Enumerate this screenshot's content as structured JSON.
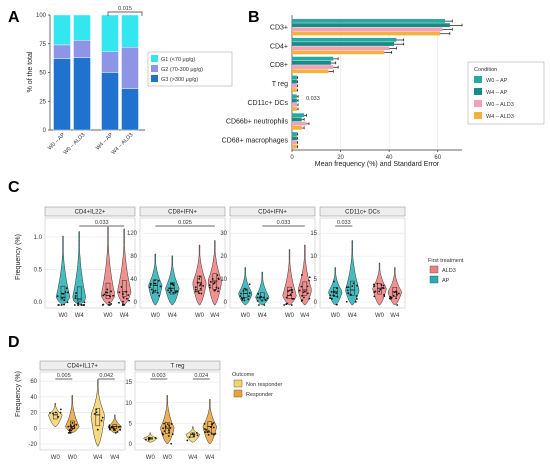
{
  "panels": {
    "A": {
      "letter": "A",
      "ylabel": "% of the total",
      "yticks": [
        "0",
        "25",
        "50",
        "75",
        "100"
      ],
      "annotation": "0.015",
      "legend": [
        "G1 (<70 μg/g)",
        "G2 (70-300 μg/g)",
        "G3 (>300 μg/g)"
      ]
    },
    "B": {
      "letter": "B",
      "xlabel": "Mean frequency (%) and Standard Error",
      "xticks": [
        "0",
        "20",
        "40",
        "60"
      ],
      "annotation": "0.033",
      "legend_title": "Condition",
      "legend": [
        "W0 – AP",
        "W4 – AP",
        "W0 – ALD3",
        "W4 – ALD3"
      ]
    },
    "C": {
      "letter": "C",
      "ylabel": "Frequency (%)",
      "legend_title": "First treatment",
      "legend": [
        "ALD3",
        "AP"
      ],
      "subplots": [
        {
          "title": "CD4+IL22+",
          "yticks": [
            "0.0",
            "0.5",
            "1.0"
          ],
          "annotation": "0.033"
        },
        {
          "title": "CD8+IFN+",
          "yticks": [
            "0",
            "40",
            "80",
            "120"
          ],
          "annotation": "0.025"
        },
        {
          "title": "CD4+IFN+",
          "yticks": [
            "0",
            "10",
            "20",
            "30"
          ],
          "annotation": "0.033"
        },
        {
          "title": "CD11c+ DCs",
          "yticks": [
            "0",
            "5",
            "10",
            "15"
          ],
          "annotation": "0.033"
        }
      ]
    },
    "D": {
      "letter": "D",
      "ylabel": "Frequency (%)",
      "legend_title": "Outcome",
      "legend": [
        "Non responder",
        "Responder"
      ],
      "subplots": [
        {
          "title": "CD4+IL17+",
          "yticks": [
            "-20",
            "0",
            "20",
            "40",
            "60"
          ],
          "annotations": [
            "0.005",
            "0.042"
          ]
        },
        {
          "title": "T reg",
          "yticks": [
            "0",
            "5",
            "10",
            "15"
          ],
          "annotations": [
            "0.003",
            "0.024"
          ]
        }
      ]
    }
  },
  "colors": {
    "G1": "#33e6f0",
    "G2": "#8f95e6",
    "G3": "#1f73cf",
    "W0_AP": "#26a9a0",
    "W4_AP": "#1a8a86",
    "W0_ALD3": "#f3a1b8",
    "W4_ALD3": "#f5b13d",
    "ALD3": "#ef7f7f",
    "AP": "#26b0b3",
    "NonResp": "#f6d26b",
    "Resp": "#e9a33a"
  },
  "chart_data": [
    {
      "type": "bar",
      "title": "",
      "ylabel": "% of the total",
      "categories": [
        "W0 – AP",
        "W0 – ALD3",
        "W4 – AP",
        "W4 – ALD3"
      ],
      "stacked": true,
      "ylim": [
        0,
        100
      ],
      "series": [
        {
          "name": "G3 (>300 μg/g)",
          "values": [
            62,
            63,
            50,
            36
          ]
        },
        {
          "name": "G2 (70-300 μg/g)",
          "values": [
            12,
            15,
            18,
            36
          ]
        },
        {
          "name": "G1 (<70 μg/g)",
          "values": [
            26,
            22,
            32,
            28
          ]
        }
      ]
    },
    {
      "type": "bar",
      "orientation": "horizontal",
      "xlabel": "Mean frequency (%) and Standard Error",
      "xlim": [
        0,
        70
      ],
      "categories": [
        "CD3+",
        "CD4+",
        "CD8+",
        "T reg",
        "CD11c+ DCs",
        "CD66b+ neutrophils",
        "CD68+ macrophages"
      ],
      "series": [
        {
          "name": "W0 – AP",
          "values": [
            63,
            43,
            17,
            2,
            2,
            5,
            2
          ]
        },
        {
          "name": "W4 – AP",
          "values": [
            65,
            42,
            16,
            2,
            2,
            4,
            2
          ]
        },
        {
          "name": "W0 – ALD3",
          "values": [
            62,
            40,
            17,
            2,
            2,
            6,
            2
          ]
        },
        {
          "name": "W4 – ALD3",
          "values": [
            61,
            38,
            15,
            2,
            2,
            4,
            2
          ]
        }
      ],
      "errors": [
        [
          3,
          3,
          2,
          0.3,
          0.5,
          1,
          0.3
        ],
        [
          5,
          4,
          2,
          0.3,
          0.5,
          1,
          0.3
        ],
        [
          4,
          3,
          2,
          0.3,
          0.5,
          1,
          0.3
        ],
        [
          4,
          3,
          2,
          0.3,
          0.5,
          1,
          0.3
        ]
      ]
    },
    {
      "type": "scatter",
      "subtype": "violin",
      "title": "CD4+IL22+",
      "categories": [
        "W0",
        "W4",
        "W0",
        "W4"
      ],
      "groups": [
        "AP",
        "AP",
        "ALD3",
        "ALD3"
      ],
      "ylim": [
        0,
        1.3
      ],
      "medians": [
        0.08,
        0.06,
        0.1,
        0.12
      ]
    },
    {
      "type": "scatter",
      "subtype": "violin",
      "title": "CD8+IFN+",
      "categories": [
        "W0",
        "W4",
        "W0",
        "W4"
      ],
      "groups": [
        "AP",
        "AP",
        "ALD3",
        "ALD3"
      ],
      "ylim": [
        0,
        130
      ],
      "medians": [
        35,
        33,
        40,
        45
      ]
    },
    {
      "type": "scatter",
      "subtype": "violin",
      "title": "CD4+IFN+",
      "categories": [
        "W0",
        "W4",
        "W0",
        "W4"
      ],
      "groups": [
        "AP",
        "AP",
        "ALD3",
        "ALD3"
      ],
      "ylim": [
        0,
        35
      ],
      "medians": [
        5,
        3,
        4,
        6
      ]
    },
    {
      "type": "scatter",
      "subtype": "violin",
      "title": "CD11c+ DCs",
      "categories": [
        "W4",
        "W0",
        "W4",
        "W0",
        "W4"
      ],
      "groups": [
        "AP",
        "AP",
        "AP",
        "ALD3",
        "ALD3"
      ],
      "ylim": [
        0,
        17
      ],
      "medians": [
        2,
        2.5,
        3,
        3,
        3
      ]
    },
    {
      "type": "scatter",
      "subtype": "violin",
      "title": "CD4+IL17+",
      "categories": [
        "W0",
        "W0",
        "W4",
        "W4"
      ],
      "groups": [
        "Non responder",
        "Responder",
        "Non responder",
        "Responder"
      ],
      "ylim": [
        -25,
        65
      ],
      "medians": [
        8,
        2,
        7,
        2
      ]
    },
    {
      "type": "scatter",
      "subtype": "violin",
      "title": "T reg",
      "categories": [
        "W0",
        "W0",
        "W4",
        "W4"
      ],
      "groups": [
        "Non responder",
        "Responder",
        "Non responder",
        "Responder"
      ],
      "ylim": [
        0,
        17
      ],
      "medians": [
        0.3,
        2,
        0.5,
        2.5
      ]
    }
  ]
}
